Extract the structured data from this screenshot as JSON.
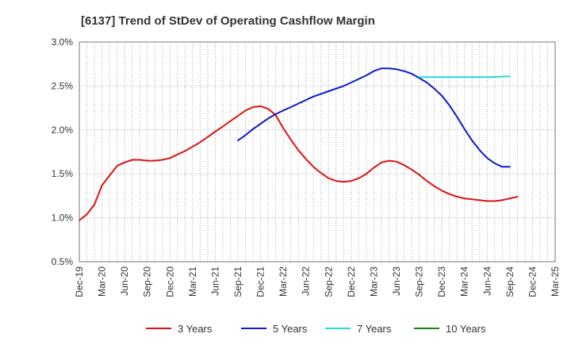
{
  "chart_data": {
    "type": "line",
    "title": "[6137]  Trend of StDev of Operating Cashflow Margin",
    "xlabel": "",
    "ylabel": "",
    "ylim": [
      0.5,
      3.0
    ],
    "yticks": [
      0.5,
      1.0,
      1.5,
      2.0,
      2.5,
      3.0
    ],
    "ytick_labels": [
      "0.5%",
      "1.0%",
      "1.5%",
      "2.0%",
      "2.5%",
      "3.0%"
    ],
    "x_categories": [
      "Dec-19",
      "Mar-20",
      "Jun-20",
      "Sep-20",
      "Dec-20",
      "Mar-21",
      "Jun-21",
      "Sep-21",
      "Dec-21",
      "Mar-22",
      "Jun-22",
      "Sep-22",
      "Dec-22",
      "Mar-23",
      "Jun-23",
      "Sep-23",
      "Dec-23",
      "Mar-24",
      "Jun-24",
      "Sep-24",
      "Dec-24",
      "Mar-25"
    ],
    "grid": true,
    "legend_position": "bottom",
    "series": [
      {
        "name": "3 Years",
        "color": "#dd1111",
        "points": [
          [
            "Dec-19",
            0.97
          ],
          [
            "Jan-20",
            1.04
          ],
          [
            "Feb-20",
            1.15
          ],
          [
            "Mar-20",
            1.37
          ],
          [
            "Apr-20",
            1.48
          ],
          [
            "May-20",
            1.59
          ],
          [
            "Jun-20",
            1.63
          ],
          [
            "Jul-20",
            1.66
          ],
          [
            "Aug-20",
            1.66
          ],
          [
            "Sep-20",
            1.65
          ],
          [
            "Oct-20",
            1.65
          ],
          [
            "Nov-20",
            1.66
          ],
          [
            "Dec-20",
            1.68
          ],
          [
            "Jan-21",
            1.72
          ],
          [
            "Feb-21",
            1.76
          ],
          [
            "Mar-21",
            1.81
          ],
          [
            "Apr-21",
            1.86
          ],
          [
            "May-21",
            1.92
          ],
          [
            "Jun-21",
            1.98
          ],
          [
            "Jul-21",
            2.04
          ],
          [
            "Aug-21",
            2.1
          ],
          [
            "Sep-21",
            2.16
          ],
          [
            "Oct-21",
            2.22
          ],
          [
            "Nov-21",
            2.26
          ],
          [
            "Dec-21",
            2.27
          ],
          [
            "Jan-22",
            2.24
          ],
          [
            "Feb-22",
            2.17
          ],
          [
            "Mar-22",
            2.02
          ],
          [
            "Apr-22",
            1.89
          ],
          [
            "May-22",
            1.77
          ],
          [
            "Jun-22",
            1.67
          ],
          [
            "Jul-22",
            1.58
          ],
          [
            "Aug-22",
            1.51
          ],
          [
            "Sep-22",
            1.45
          ],
          [
            "Oct-22",
            1.42
          ],
          [
            "Nov-22",
            1.41
          ],
          [
            "Dec-22",
            1.42
          ],
          [
            "Jan-23",
            1.45
          ],
          [
            "Feb-23",
            1.5
          ],
          [
            "Mar-23",
            1.57
          ],
          [
            "Apr-23",
            1.63
          ],
          [
            "May-23",
            1.65
          ],
          [
            "Jun-23",
            1.64
          ],
          [
            "Jul-23",
            1.6
          ],
          [
            "Aug-23",
            1.55
          ],
          [
            "Sep-23",
            1.49
          ],
          [
            "Oct-23",
            1.42
          ],
          [
            "Nov-23",
            1.36
          ],
          [
            "Dec-23",
            1.31
          ],
          [
            "Jan-24",
            1.27
          ],
          [
            "Feb-24",
            1.24
          ],
          [
            "Mar-24",
            1.22
          ],
          [
            "Apr-24",
            1.21
          ],
          [
            "May-24",
            1.2
          ],
          [
            "Jun-24",
            1.19
          ],
          [
            "Jul-24",
            1.19
          ],
          [
            "Aug-24",
            1.2
          ],
          [
            "Sep-24",
            1.22
          ],
          [
            "Oct-24",
            1.24
          ]
        ]
      },
      {
        "name": "5 Years",
        "color": "#0a1acc",
        "points": [
          [
            "Sep-21",
            1.88
          ],
          [
            "Oct-21",
            1.94
          ],
          [
            "Nov-21",
            2.01
          ],
          [
            "Dec-21",
            2.07
          ],
          [
            "Jan-22",
            2.13
          ],
          [
            "Feb-22",
            2.18
          ],
          [
            "Mar-22",
            2.22
          ],
          [
            "Apr-22",
            2.26
          ],
          [
            "May-22",
            2.3
          ],
          [
            "Jun-22",
            2.34
          ],
          [
            "Jul-22",
            2.38
          ],
          [
            "Aug-22",
            2.41
          ],
          [
            "Sep-22",
            2.44
          ],
          [
            "Oct-22",
            2.47
          ],
          [
            "Nov-22",
            2.5
          ],
          [
            "Dec-22",
            2.54
          ],
          [
            "Jan-23",
            2.58
          ],
          [
            "Feb-23",
            2.62
          ],
          [
            "Mar-23",
            2.67
          ],
          [
            "Apr-23",
            2.7
          ],
          [
            "May-23",
            2.7
          ],
          [
            "Jun-23",
            2.69
          ],
          [
            "Jul-23",
            2.67
          ],
          [
            "Aug-23",
            2.64
          ],
          [
            "Sep-23",
            2.59
          ],
          [
            "Oct-23",
            2.54
          ],
          [
            "Nov-23",
            2.47
          ],
          [
            "Dec-23",
            2.39
          ],
          [
            "Jan-24",
            2.28
          ],
          [
            "Feb-24",
            2.15
          ],
          [
            "Mar-24",
            2.01
          ],
          [
            "Apr-24",
            1.88
          ],
          [
            "May-24",
            1.77
          ],
          [
            "Jun-24",
            1.68
          ],
          [
            "Jul-24",
            1.62
          ],
          [
            "Aug-24",
            1.58
          ],
          [
            "Sep-24",
            1.58
          ]
        ]
      },
      {
        "name": "7 Years",
        "color": "#22dddd",
        "points": [
          [
            "Sep-23",
            2.6
          ],
          [
            "Dec-23",
            2.6
          ],
          [
            "Mar-24",
            2.6
          ],
          [
            "Jun-24",
            2.6
          ],
          [
            "Sep-24",
            2.61
          ]
        ]
      },
      {
        "name": "10 Years",
        "color": "#118811",
        "points": []
      }
    ]
  }
}
